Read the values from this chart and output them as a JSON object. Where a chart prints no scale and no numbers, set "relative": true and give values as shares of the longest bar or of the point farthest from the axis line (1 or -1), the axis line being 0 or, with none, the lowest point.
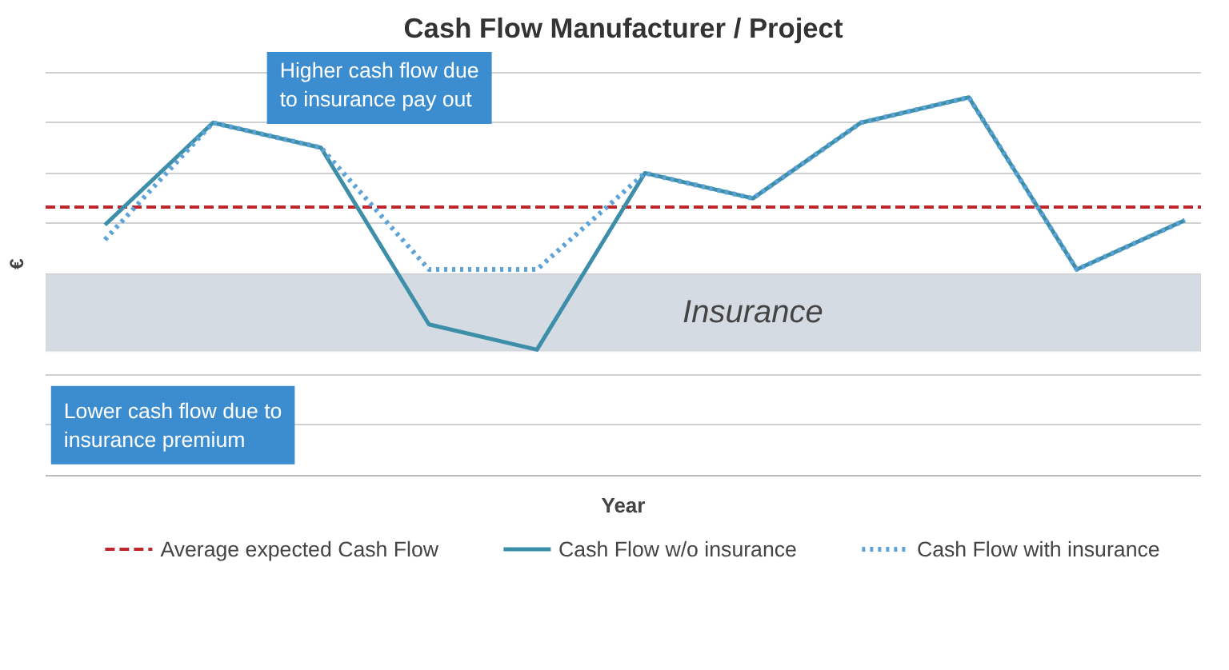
{
  "chart_data": {
    "type": "line",
    "title": "Cash Flow Manufacturer / Project",
    "xlabel": "Year",
    "ylabel": "€",
    "relative": true,
    "categories": [
      null,
      null,
      null,
      null,
      null,
      null,
      null,
      null,
      null,
      null,
      null
    ],
    "series": [
      {
        "name": "Cash Flow w/o insurance",
        "color": "#3d8ea8",
        "line_style": "solid",
        "values": [
          0.663,
          0.933,
          0.867,
          0.4,
          0.333,
          0.8,
          0.733,
          0.933,
          1,
          0.545,
          0.675
        ]
      },
      {
        "name": "Cash Flow with insurance",
        "color": "#5ba3d9",
        "line_style": "dotted",
        "values": [
          0.624,
          0.933,
          0.867,
          0.545,
          0.545,
          0.8,
          0.733,
          0.933,
          1,
          0.545,
          0.675
        ]
      }
    ],
    "ref_lines": [
      {
        "axis": "y",
        "value": 0.71,
        "label": "Average expected Cash Flow",
        "color": "#c0272d",
        "line_style": "dashed"
      }
    ],
    "bands": [
      {
        "axis": "y",
        "from": 0.329,
        "to": 0.533,
        "label": "Insurance",
        "color": "#d5dbe3"
      }
    ],
    "annotations": [
      "Lower cash flow due to insurance premium",
      "Higher cash flow due to insurance pay out"
    ],
    "grid": "y",
    "legend": "bottom"
  }
}
